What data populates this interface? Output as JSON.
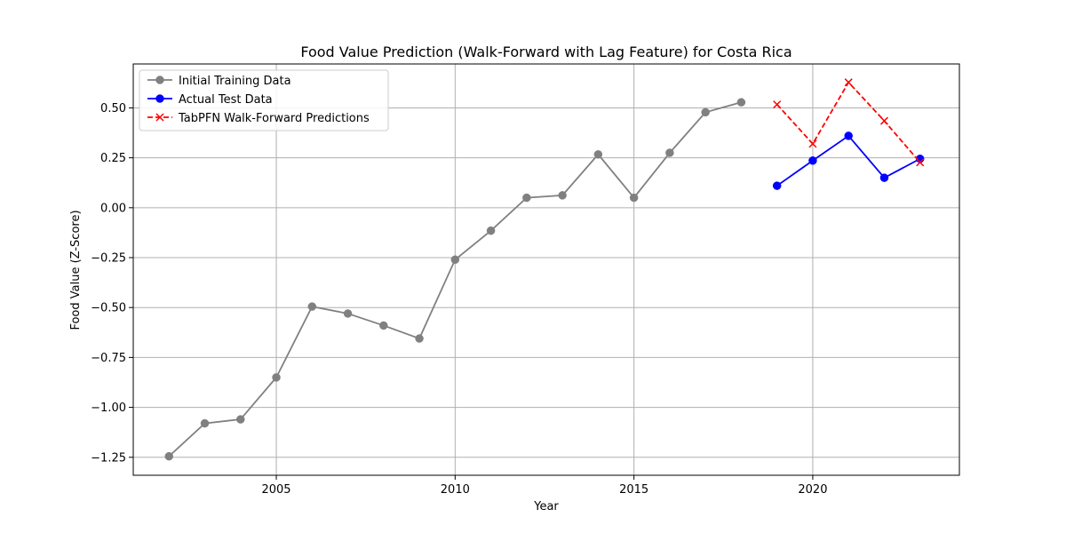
{
  "chart_data": {
    "type": "line",
    "title": "Food Value Prediction (Walk-Forward with Lag Feature) for Costa Rica",
    "xlabel": "Year",
    "ylabel": "Food Value (Z-Score)",
    "xlim": [
      2001.0,
      2024.1
    ],
    "ylim": [
      -1.34,
      0.72
    ],
    "xticks": [
      2005,
      2010,
      2015,
      2020
    ],
    "yticks": [
      0.5,
      0.25,
      0.0,
      -0.25,
      -0.5,
      -0.75,
      -1.0,
      -1.25
    ],
    "ytick_labels": [
      "0.50",
      "0.25",
      "0.00",
      "−0.25",
      "−0.50",
      "−0.75",
      "−1.00",
      "−1.25"
    ],
    "grid": true,
    "legend_position": "top-left",
    "series": [
      {
        "name": "Initial Training Data",
        "color": "#808080",
        "marker": "circle",
        "linestyle": "solid",
        "x": [
          2002,
          2003,
          2004,
          2005,
          2006,
          2007,
          2008,
          2009,
          2010,
          2011,
          2012,
          2013,
          2014,
          2015,
          2016,
          2017,
          2018
        ],
        "y": [
          -1.245,
          -1.08,
          -1.06,
          -0.85,
          -0.495,
          -0.53,
          -0.59,
          -0.655,
          -0.26,
          -0.115,
          0.05,
          0.062,
          0.267,
          0.05,
          0.275,
          0.478,
          0.528
        ]
      },
      {
        "name": "Actual Test Data",
        "color": "#0000ff",
        "marker": "circle",
        "linestyle": "solid",
        "x": [
          2019,
          2020,
          2021,
          2022,
          2023
        ],
        "y": [
          0.11,
          0.236,
          0.36,
          0.15,
          0.245
        ]
      },
      {
        "name": "TabPFN Walk-Forward Predictions",
        "color": "#ff0000",
        "marker": "x",
        "linestyle": "dashed",
        "x": [
          2019,
          2020,
          2021,
          2022,
          2023
        ],
        "y": [
          0.517,
          0.32,
          0.628,
          0.435,
          0.227
        ]
      }
    ]
  }
}
